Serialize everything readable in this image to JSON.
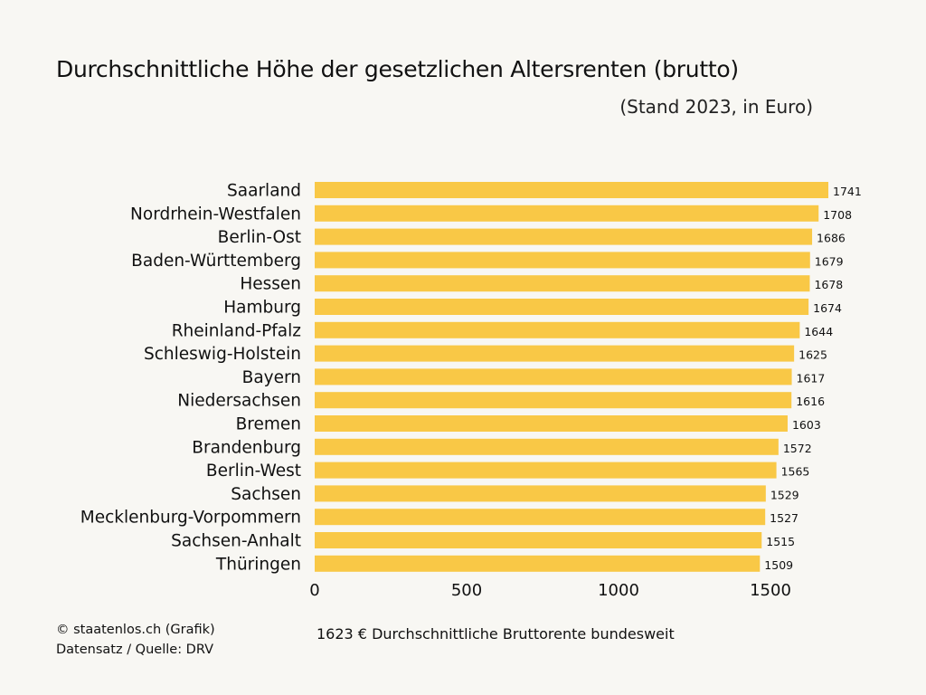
{
  "chart_data": {
    "type": "bar",
    "orientation": "horizontal",
    "title": "Durchschnittliche Höhe der gesetzlichen Altersrenten (brutto)",
    "subtitle": "(Stand 2023, in Euro)",
    "xlabel": "",
    "ylabel": "",
    "xlim": [
      0,
      1741
    ],
    "grid": false,
    "legend": "none",
    "bar_color": "#f9c846",
    "categories": [
      "Saarland",
      "Nordrhein-Westfalen",
      "Berlin-Ost",
      "Baden-Württemberg",
      "Hessen",
      "Hamburg",
      "Rheinland-Pfalz",
      "Schleswig-Holstein",
      "Bayern",
      "Niedersachsen",
      "Bremen",
      "Brandenburg",
      "Berlin-West",
      "Sachsen",
      "Mecklenburg-Vorpommern",
      "Sachsen-Anhalt",
      "Thüringen"
    ],
    "values": [
      1741,
      1708,
      1686,
      1679,
      1678,
      1674,
      1644,
      1625,
      1617,
      1616,
      1603,
      1572,
      1565,
      1529,
      1527,
      1515,
      1509
    ],
    "x_ticks": [
      0,
      500,
      1000,
      1500
    ],
    "x_tick_labels": [
      "0",
      "500",
      "1000",
      "1500"
    ]
  },
  "footer": {
    "credit": "© staatenlos.ch (Grafik)",
    "source": "Datensatz / Quelle: DRV",
    "note": "1623 € Durchschnittliche Bruttorente bundesweit"
  }
}
